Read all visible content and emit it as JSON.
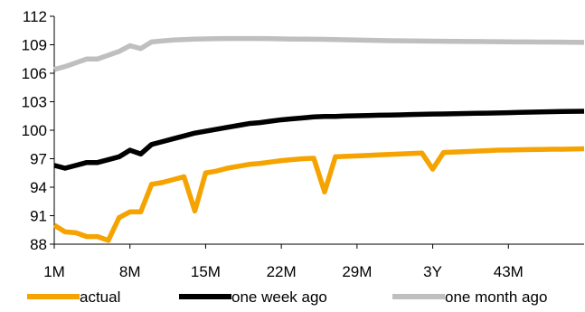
{
  "chart_data": {
    "type": "line",
    "title": "",
    "xlabel": "",
    "ylabel": "",
    "ylim": [
      88,
      112
    ],
    "y_ticks": [
      88,
      91,
      94,
      97,
      100,
      103,
      106,
      109,
      112
    ],
    "x_tick_labels": [
      "1M",
      "8M",
      "15M",
      "22M",
      "29M",
      "3Y",
      "43M"
    ],
    "grid": false,
    "legend_position": "bottom",
    "x": [
      "1M",
      "2M",
      "3M",
      "4M",
      "5M",
      "6M",
      "7M",
      "8M",
      "9M",
      "10M",
      "11M",
      "12M",
      "13M",
      "14M",
      "15M",
      "16M",
      "17M",
      "18M",
      "19M",
      "20M",
      "21M",
      "22M",
      "23M",
      "24M",
      "25M",
      "26M",
      "27M",
      "28M",
      "29M",
      "30M",
      "31M",
      "32M",
      "33M",
      "34M",
      "35M",
      "3Y",
      "37M",
      "38M",
      "39M",
      "40M",
      "41M",
      "42M",
      "43M",
      "44M",
      "45M",
      "46M",
      "47M",
      "48M",
      "49M",
      "50M"
    ],
    "series": [
      {
        "name": "actual",
        "color": "#f5a300",
        "values": [
          90.0,
          89.3,
          89.2,
          88.8,
          88.8,
          88.4,
          90.8,
          91.4,
          91.4,
          94.3,
          94.5,
          94.8,
          95.1,
          91.5,
          95.5,
          95.7,
          96.0,
          96.2,
          96.4,
          96.5,
          96.65,
          96.8,
          96.9,
          97.0,
          97.05,
          93.5,
          97.2,
          97.25,
          97.3,
          97.35,
          97.4,
          97.45,
          97.5,
          97.55,
          97.6,
          95.9,
          97.65,
          97.7,
          97.75,
          97.8,
          97.85,
          97.9,
          97.92,
          97.94,
          97.96,
          97.98,
          98.0,
          98.0,
          98.02,
          98.05
        ]
      },
      {
        "name": "one week ago",
        "color": "#000000",
        "values": [
          96.3,
          96.0,
          96.3,
          96.6,
          96.6,
          96.9,
          97.2,
          97.9,
          97.5,
          98.5,
          98.8,
          99.1,
          99.4,
          99.7,
          99.9,
          100.1,
          100.3,
          100.5,
          100.7,
          100.8,
          100.95,
          101.1,
          101.2,
          101.3,
          101.4,
          101.45,
          101.45,
          101.5,
          101.52,
          101.55,
          101.58,
          101.6,
          101.62,
          101.65,
          101.68,
          101.7,
          101.72,
          101.74,
          101.76,
          101.78,
          101.8,
          101.82,
          101.85,
          101.88,
          101.9,
          101.93,
          101.95,
          101.97,
          101.99,
          102.0
        ]
      },
      {
        "name": "one month ago",
        "color": "#bfbfbf",
        "values": [
          106.4,
          106.7,
          107.1,
          107.5,
          107.5,
          107.9,
          108.3,
          108.9,
          108.6,
          109.3,
          109.4,
          109.5,
          109.55,
          109.6,
          109.62,
          109.64,
          109.65,
          109.65,
          109.66,
          109.65,
          109.64,
          109.62,
          109.6,
          109.59,
          109.58,
          109.57,
          109.55,
          109.52,
          109.5,
          109.47,
          109.45,
          109.43,
          109.42,
          109.4,
          109.39,
          109.38,
          109.37,
          109.36,
          109.35,
          109.34,
          109.33,
          109.32,
          109.31,
          109.3,
          109.3,
          109.29,
          109.28,
          109.27,
          109.26,
          109.25
        ]
      }
    ]
  }
}
